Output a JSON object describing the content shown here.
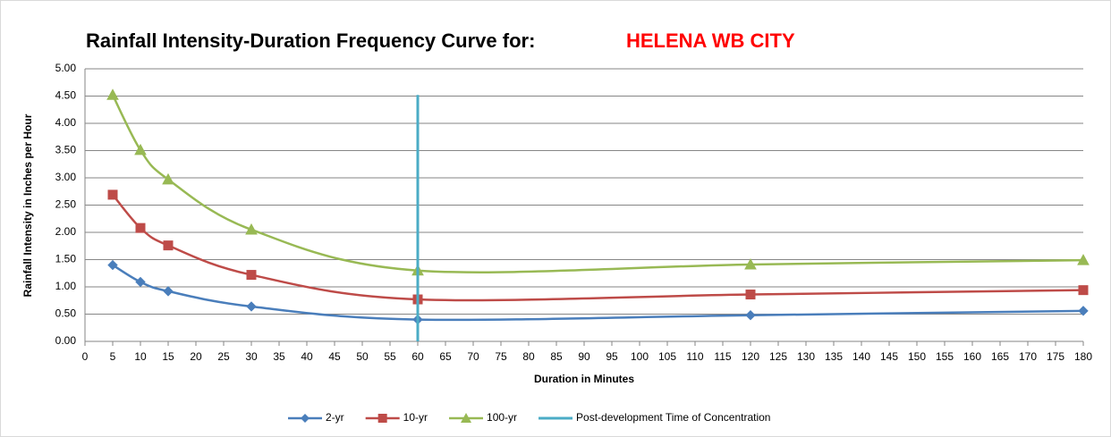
{
  "chart_data": {
    "type": "line",
    "title": "Rainfall Intensity-Duration Frequency Curve for:",
    "subtitle": "HELENA WB CITY",
    "x_label": "Duration in Minutes",
    "y_label": "Rainfall Intensity in Inches per Hour",
    "x": [
      5,
      10,
      15,
      30,
      60,
      120,
      180
    ],
    "series": [
      {
        "name": "2-yr",
        "color": "#4a7ebb",
        "marker": "diamond",
        "values": [
          1.4,
          1.09,
          0.92,
          0.64,
          0.4,
          0.48,
          0.56
        ]
      },
      {
        "name": "10-yr",
        "color": "#be4b48",
        "marker": "square",
        "values": [
          2.69,
          2.08,
          1.76,
          1.22,
          0.77,
          0.86,
          0.94
        ]
      },
      {
        "name": "100-yr",
        "color": "#98b954",
        "marker": "triangle",
        "values": [
          4.52,
          3.51,
          2.97,
          2.05,
          1.3,
          1.41,
          1.49
        ]
      },
      {
        "name": "Post-development Time of Concentration",
        "color": "#4bacc6",
        "marker": "none",
        "x": [
          60,
          60
        ],
        "values": [
          0,
          4.52
        ]
      }
    ],
    "xlim": [
      0,
      180
    ],
    "xticks": [
      0,
      5,
      10,
      15,
      20,
      25,
      30,
      35,
      40,
      45,
      50,
      55,
      60,
      65,
      70,
      75,
      80,
      85,
      90,
      95,
      100,
      105,
      110,
      115,
      120,
      125,
      130,
      135,
      140,
      145,
      150,
      155,
      160,
      165,
      170,
      175,
      180
    ],
    "ylim": [
      0,
      5
    ],
    "yticks": [
      {
        "value": 0,
        "label": "0.00"
      },
      {
        "value": 0.5,
        "label": "0.50"
      },
      {
        "value": 1,
        "label": "1.00"
      },
      {
        "value": 1.5,
        "label": "1.50"
      },
      {
        "value": 2,
        "label": "2.00"
      },
      {
        "value": 2.5,
        "label": "2.50"
      },
      {
        "value": 3,
        "label": "3.00"
      },
      {
        "value": 3.5,
        "label": "3.50"
      },
      {
        "value": 4,
        "label": "4.00"
      },
      {
        "value": 4.5,
        "label": "4.50"
      },
      {
        "value": 5,
        "label": "5.00"
      }
    ],
    "grid": true,
    "legend": "bottom"
  }
}
